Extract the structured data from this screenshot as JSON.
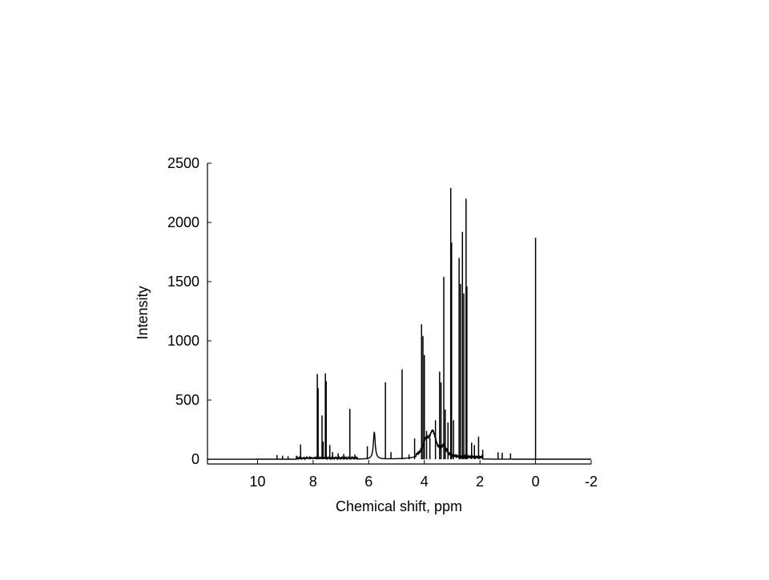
{
  "chart_data": {
    "type": "line",
    "title": "",
    "xlabel": "Chemical shift, ppm",
    "ylabel": "Intensity",
    "xlim": [
      11.8,
      -2
    ],
    "ylim": [
      -40,
      2500
    ],
    "x_reversed": true,
    "grid": false,
    "legend": "none",
    "xticks": [
      10,
      8,
      6,
      4,
      2,
      0,
      -2
    ],
    "xtick_labels": [
      "10",
      "8",
      "6",
      "4",
      "2",
      "0",
      "-2"
    ],
    "yticks": [
      0,
      500,
      1000,
      1500,
      2000,
      2500
    ],
    "ytick_labels": [
      "0",
      "500",
      "1000",
      "1500",
      "2000",
      "2500"
    ],
    "line_color": "#000000",
    "baseline": 0,
    "broad_humps": [
      {
        "ppm": 5.8,
        "height": 230,
        "width": 0.08
      },
      {
        "ppm": 3.7,
        "height": 200,
        "width": 0.3
      },
      {
        "ppm": 3.95,
        "height": 110,
        "width": 0.25
      },
      {
        "ppm": 3.3,
        "height": 80,
        "width": 0.2
      }
    ],
    "series": [
      {
        "peaks": [
          {
            "ppm": 9.3,
            "height": 35
          },
          {
            "ppm": 9.1,
            "height": 30
          },
          {
            "ppm": 8.9,
            "height": 25
          },
          {
            "ppm": 8.6,
            "height": 30
          },
          {
            "ppm": 8.45,
            "height": 125
          },
          {
            "ppm": 8.1,
            "height": 20
          },
          {
            "ppm": 7.85,
            "height": 720
          },
          {
            "ppm": 7.82,
            "height": 600
          },
          {
            "ppm": 7.68,
            "height": 370
          },
          {
            "ppm": 7.64,
            "height": 150
          },
          {
            "ppm": 7.56,
            "height": 725
          },
          {
            "ppm": 7.53,
            "height": 660
          },
          {
            "ppm": 7.4,
            "height": 120
          },
          {
            "ppm": 7.3,
            "height": 60
          },
          {
            "ppm": 7.1,
            "height": 50
          },
          {
            "ppm": 6.9,
            "height": 45
          },
          {
            "ppm": 6.68,
            "height": 425
          },
          {
            "ppm": 6.5,
            "height": 40
          },
          {
            "ppm": 6.05,
            "height": 110
          },
          {
            "ppm": 5.4,
            "height": 650
          },
          {
            "ppm": 5.2,
            "height": 60
          },
          {
            "ppm": 4.8,
            "height": 760
          },
          {
            "ppm": 4.55,
            "height": 40
          },
          {
            "ppm": 4.35,
            "height": 175
          },
          {
            "ppm": 4.1,
            "height": 1140
          },
          {
            "ppm": 4.05,
            "height": 1040
          },
          {
            "ppm": 4.0,
            "height": 880
          },
          {
            "ppm": 3.92,
            "height": 240
          },
          {
            "ppm": 3.8,
            "height": 180
          },
          {
            "ppm": 3.6,
            "height": 330
          },
          {
            "ppm": 3.45,
            "height": 740
          },
          {
            "ppm": 3.4,
            "height": 650
          },
          {
            "ppm": 3.3,
            "height": 1540
          },
          {
            "ppm": 3.25,
            "height": 420
          },
          {
            "ppm": 3.15,
            "height": 310
          },
          {
            "ppm": 3.05,
            "height": 2290
          },
          {
            "ppm": 3.02,
            "height": 1830
          },
          {
            "ppm": 2.95,
            "height": 330
          },
          {
            "ppm": 2.75,
            "height": 1700
          },
          {
            "ppm": 2.7,
            "height": 1480
          },
          {
            "ppm": 2.63,
            "height": 1920
          },
          {
            "ppm": 2.58,
            "height": 1400
          },
          {
            "ppm": 2.5,
            "height": 2200
          },
          {
            "ppm": 2.47,
            "height": 1460
          },
          {
            "ppm": 2.3,
            "height": 140
          },
          {
            "ppm": 2.2,
            "height": 120
          },
          {
            "ppm": 2.05,
            "height": 190
          },
          {
            "ppm": 1.9,
            "height": 80
          },
          {
            "ppm": 1.35,
            "height": 60
          },
          {
            "ppm": 1.2,
            "height": 55
          },
          {
            "ppm": 0.9,
            "height": 50
          },
          {
            "ppm": 0.0,
            "height": 1870
          }
        ]
      }
    ]
  }
}
